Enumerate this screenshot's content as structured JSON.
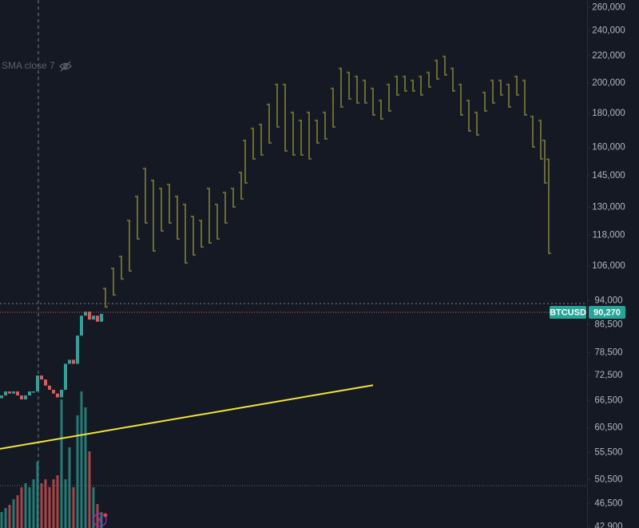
{
  "chart_data": {
    "type": "candlestick",
    "indicator": "SMA close 7",
    "symbol": "BTCUSD",
    "last_price": {
      "value": 90270,
      "label": "90,270"
    },
    "log_scale": true,
    "ylim": [
      42700,
      267000
    ],
    "yticks": [
      {
        "value": 260000,
        "label": "260,000"
      },
      {
        "value": 240000,
        "label": "240,000"
      },
      {
        "value": 220000,
        "label": "220,000"
      },
      {
        "value": 200000,
        "label": "200,000"
      },
      {
        "value": 180000,
        "label": "180,000"
      },
      {
        "value": 160000,
        "label": "160,000"
      },
      {
        "value": 145000,
        "label": "145,000"
      },
      {
        "value": 130000,
        "label": "130,000"
      },
      {
        "value": 118000,
        "label": "118,000"
      },
      {
        "value": 106000,
        "label": "106,000"
      },
      {
        "value": 94000,
        "label": "94,000"
      },
      {
        "value": 86500,
        "label": "86,500"
      },
      {
        "value": 78500,
        "label": "78,500"
      },
      {
        "value": 72500,
        "label": "72,500"
      },
      {
        "value": 66500,
        "label": "66,500"
      },
      {
        "value": 60500,
        "label": "60,500"
      },
      {
        "value": 55500,
        "label": "55,500"
      },
      {
        "value": 50500,
        "label": "50,500"
      },
      {
        "value": 46500,
        "label": "46,500"
      },
      {
        "value": 42900,
        "label": "42,900"
      }
    ],
    "candles": {
      "x": [
        0,
        1,
        2,
        3,
        4,
        5,
        6,
        7,
        8,
        9,
        10,
        11,
        12,
        13,
        14,
        15,
        16,
        17,
        18,
        19,
        20,
        21,
        22,
        23,
        24,
        25
      ],
      "open": [
        67000,
        67650,
        68600,
        68100,
        68600,
        67650,
        66720,
        67650,
        68600,
        68600,
        72500,
        71500,
        70000,
        69000,
        68100,
        67200,
        69000,
        75510,
        76570,
        75500,
        83270,
        89250,
        90500,
        88030,
        89250,
        87400
      ],
      "close": [
        67650,
        68600,
        68100,
        68600,
        67650,
        66720,
        67650,
        68600,
        68600,
        72500,
        71500,
        70000,
        69000,
        68100,
        67200,
        69000,
        75510,
        76570,
        75500,
        83270,
        89250,
        90500,
        88030,
        89250,
        87400,
        89800
      ],
      "up_color": "#26a69a",
      "down_color": "#ef5350"
    },
    "volume": [
      20,
      25,
      29,
      36,
      41,
      51,
      56,
      51,
      61,
      83,
      56,
      61,
      51,
      61,
      66,
      161,
      61,
      101,
      51,
      141,
      171,
      151,
      96,
      51,
      30,
      20
    ],
    "projection": {
      "x": [
        26,
        28,
        30,
        32,
        34,
        36,
        38,
        40,
        42,
        44,
        46,
        48,
        50,
        52,
        54,
        56,
        58,
        60,
        61,
        63,
        65,
        67,
        69,
        71,
        73,
        75,
        77,
        79,
        81,
        83,
        85,
        87,
        89,
        91,
        93,
        95,
        97,
        99,
        101,
        103,
        105,
        107,
        109,
        111,
        113,
        115,
        117,
        119,
        121,
        123,
        125,
        127,
        129,
        131,
        133,
        135,
        136,
        137
      ],
      "high": [
        98340,
        105420,
        109900,
        124530,
        135360,
        149180,
        143090,
        139170,
        141120,
        135360,
        131650,
        126270,
        124530,
        139170,
        131650,
        137250,
        139170,
        147120,
        164420,
        171410,
        173810,
        186300,
        199700,
        199700,
        181200,
        176240,
        181200,
        176240,
        181200,
        196950,
        211120,
        208200,
        205330,
        202500,
        196950,
        188910,
        199700,
        205330,
        205330,
        202500,
        205330,
        208200,
        217060,
        220100,
        211120,
        199700,
        188910,
        181200,
        194230,
        202500,
        202500,
        199700,
        205330,
        202500,
        178700,
        176240,
        164420,
        154000
      ],
      "low": [
        91750,
        95650,
        101110,
        103960,
        116180,
        122810,
        111440,
        119450,
        122810,
        116180,
        106890,
        109900,
        113000,
        114580,
        116180,
        122810,
        129830,
        133490,
        141120,
        153390,
        155530,
        162150,
        171410,
        157710,
        155530,
        155530,
        153390,
        162150,
        164420,
        171410,
        183740,
        188910,
        186300,
        186300,
        178700,
        176240,
        181200,
        191550,
        194230,
        194230,
        191550,
        196950,
        202500,
        205330,
        194230,
        178700,
        169050,
        166720,
        181200,
        186300,
        191550,
        183740,
        191550,
        178700,
        159910,
        153390,
        141120,
        110500
      ],
      "color": "#6b6a30"
    },
    "trendline": {
      "x": [
        0,
        93
      ],
      "values": [
        56200,
        70100
      ],
      "color": "#f2e53a"
    }
  }
}
